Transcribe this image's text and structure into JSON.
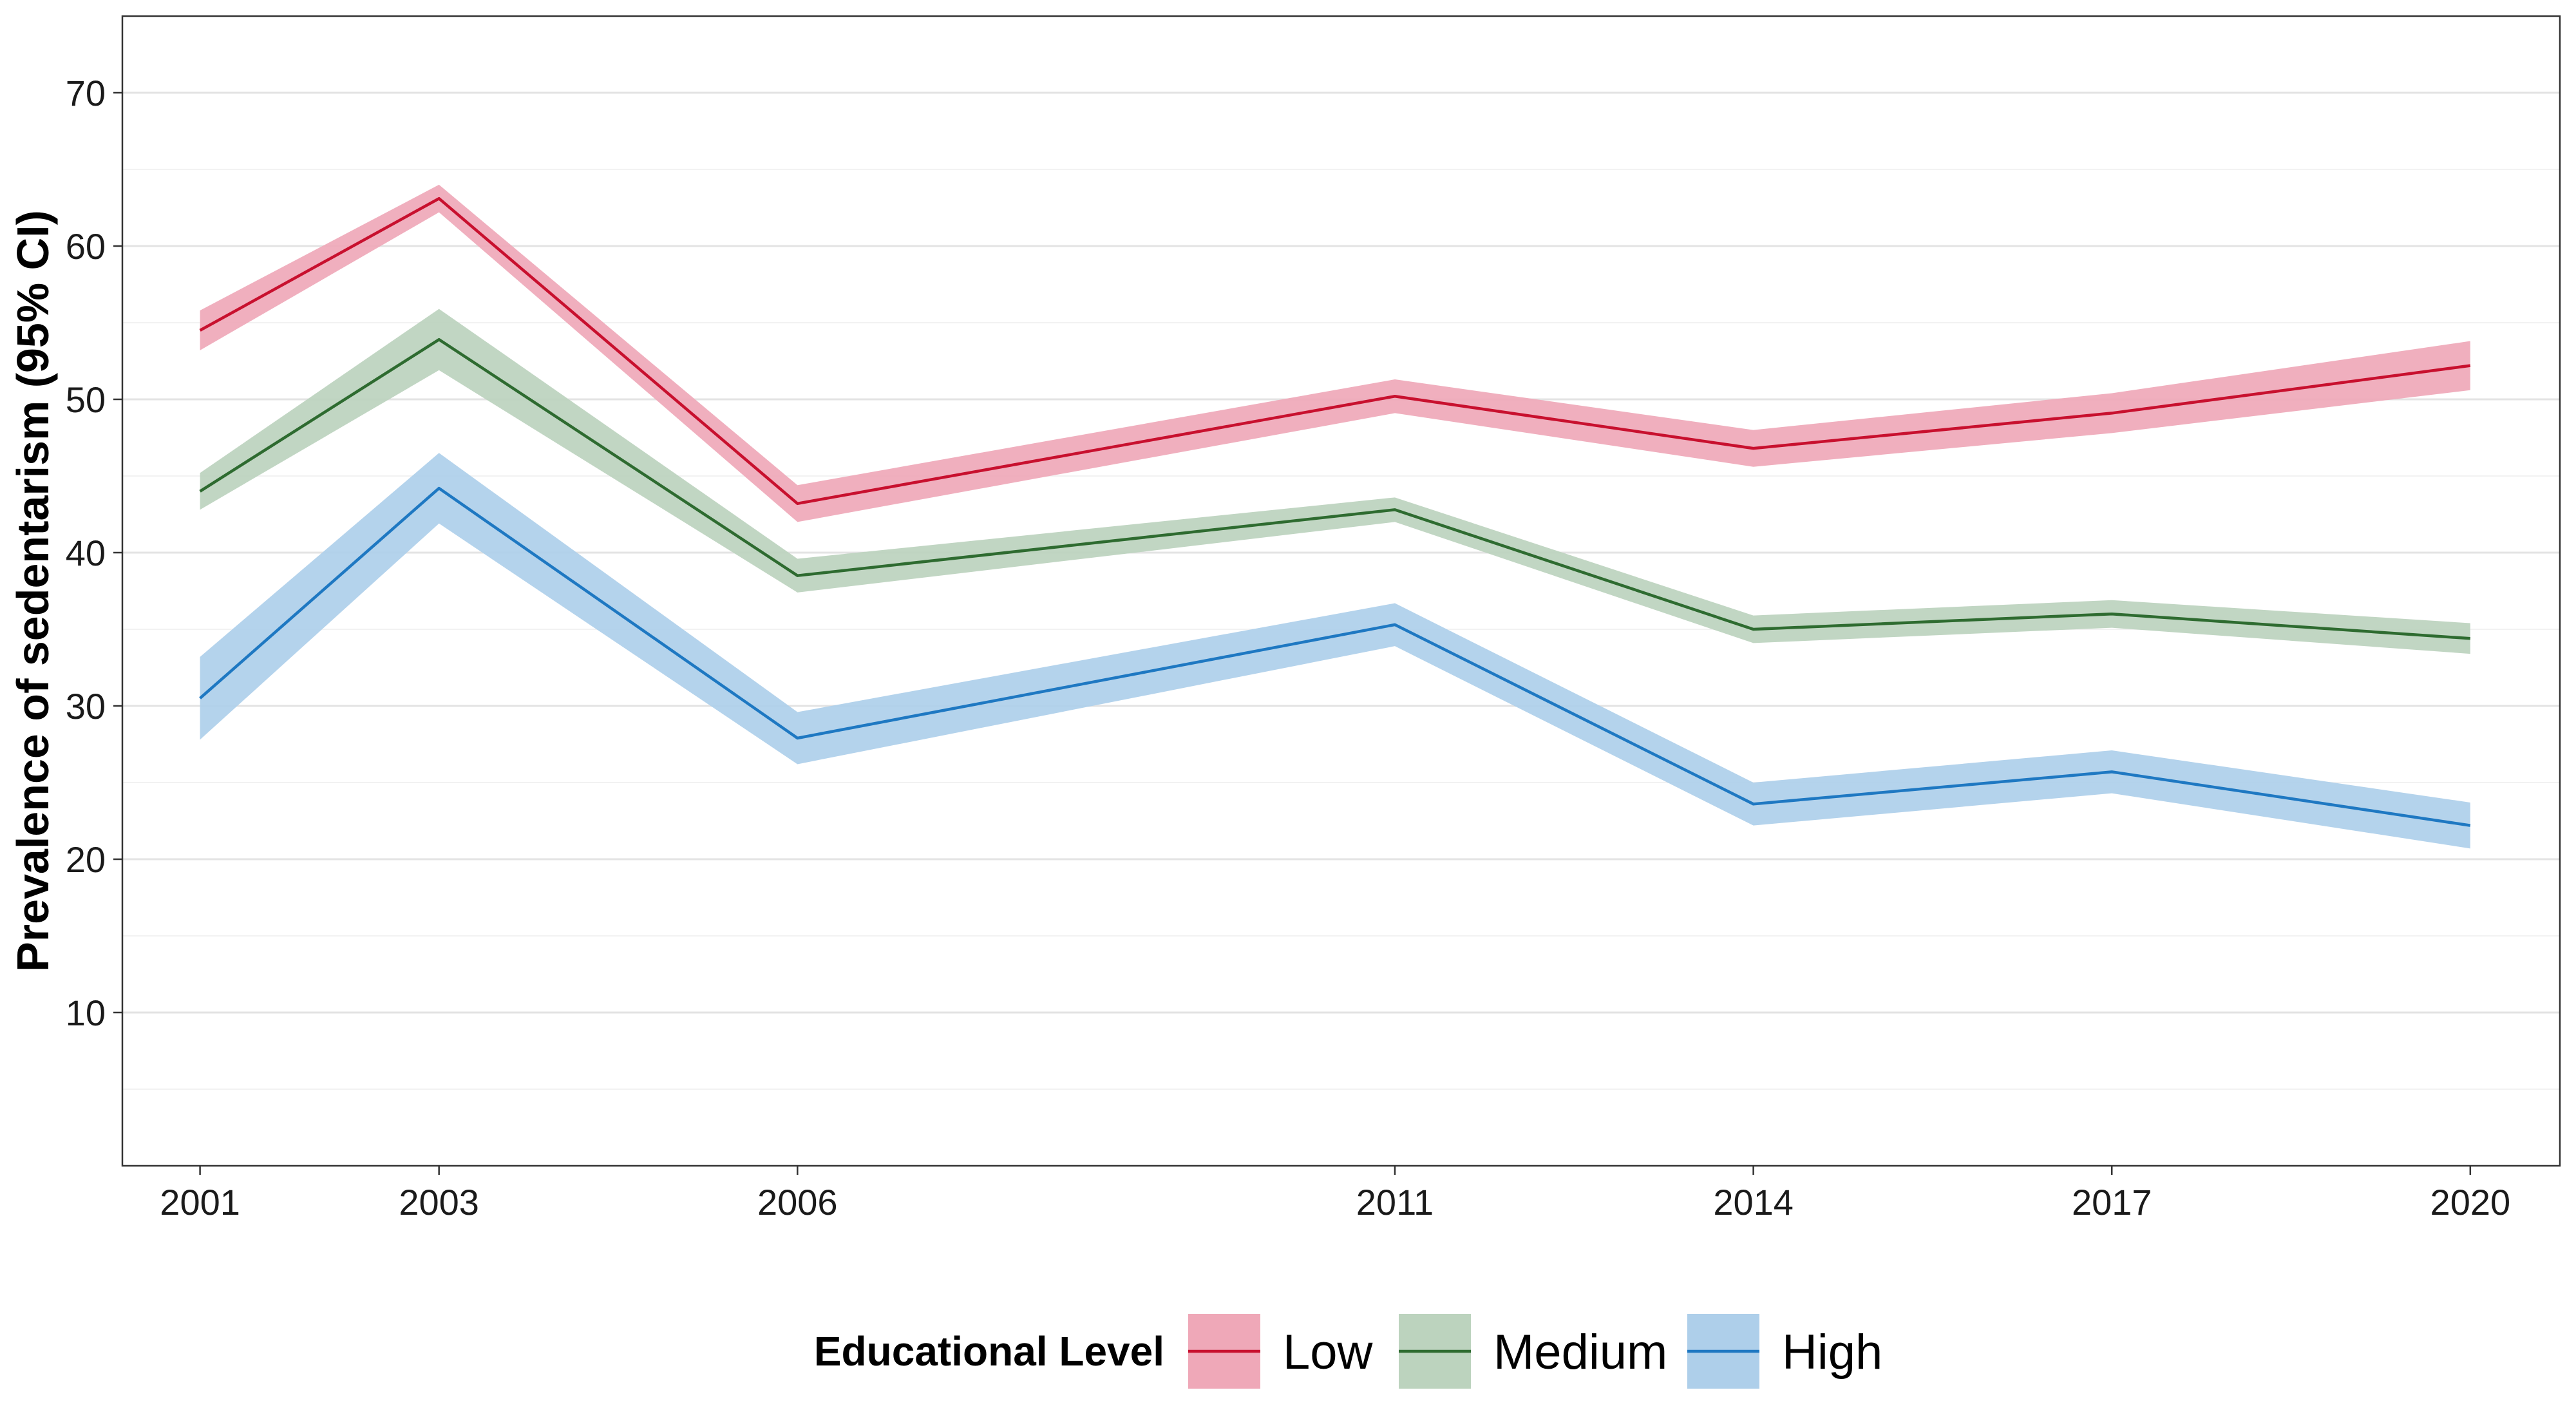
{
  "chart_data": {
    "type": "line",
    "title": "",
    "xlabel": "",
    "ylabel": "Prevalence of sedentarism (95% CI)",
    "x": [
      2001,
      2003,
      2006,
      2011,
      2014,
      2017,
      2020
    ],
    "x_tick_labels": [
      "2001",
      "2003",
      "2006",
      "2011",
      "2014",
      "2017",
      "2020"
    ],
    "xlim": [
      2000.35,
      2020.75
    ],
    "ylim": [
      0,
      75
    ],
    "y_ticks": [
      10,
      20,
      30,
      40,
      50,
      60,
      70
    ],
    "y_tick_labels": [
      "10",
      "20",
      "30",
      "40",
      "50",
      "60",
      "70"
    ],
    "y_minor_gridlines": [
      5,
      15,
      25,
      35,
      45,
      55,
      65
    ],
    "grid": true,
    "legend": {
      "title": "Educational Level",
      "position": "bottom"
    },
    "series": [
      {
        "name": "Low",
        "line_color": "#C8102E",
        "band_color": "#EFA8B8",
        "values": [
          54.5,
          63.1,
          43.2,
          50.2,
          46.8,
          49.1,
          52.2
        ],
        "lower": [
          53.2,
          62.2,
          42.0,
          49.1,
          45.6,
          47.8,
          50.6
        ],
        "upper": [
          55.8,
          64.0,
          44.4,
          51.3,
          48.0,
          50.4,
          53.8
        ]
      },
      {
        "name": "Medium",
        "line_color": "#2E6B30",
        "band_color": "#BCD3BE",
        "values": [
          44.0,
          53.9,
          38.5,
          42.8,
          35.0,
          36.0,
          34.4
        ],
        "lower": [
          42.8,
          51.9,
          37.4,
          42.0,
          34.1,
          35.1,
          33.4
        ],
        "upper": [
          45.2,
          55.9,
          39.6,
          43.6,
          35.9,
          36.9,
          35.4
        ]
      },
      {
        "name": "High",
        "line_color": "#1E78C2",
        "band_color": "#AECFEA",
        "values": [
          30.5,
          44.2,
          27.9,
          35.3,
          23.6,
          25.7,
          22.2
        ],
        "lower": [
          27.8,
          41.9,
          26.2,
          33.9,
          22.2,
          24.3,
          20.7
        ],
        "upper": [
          33.2,
          46.5,
          29.6,
          36.7,
          25.0,
          27.1,
          23.7
        ]
      }
    ]
  }
}
